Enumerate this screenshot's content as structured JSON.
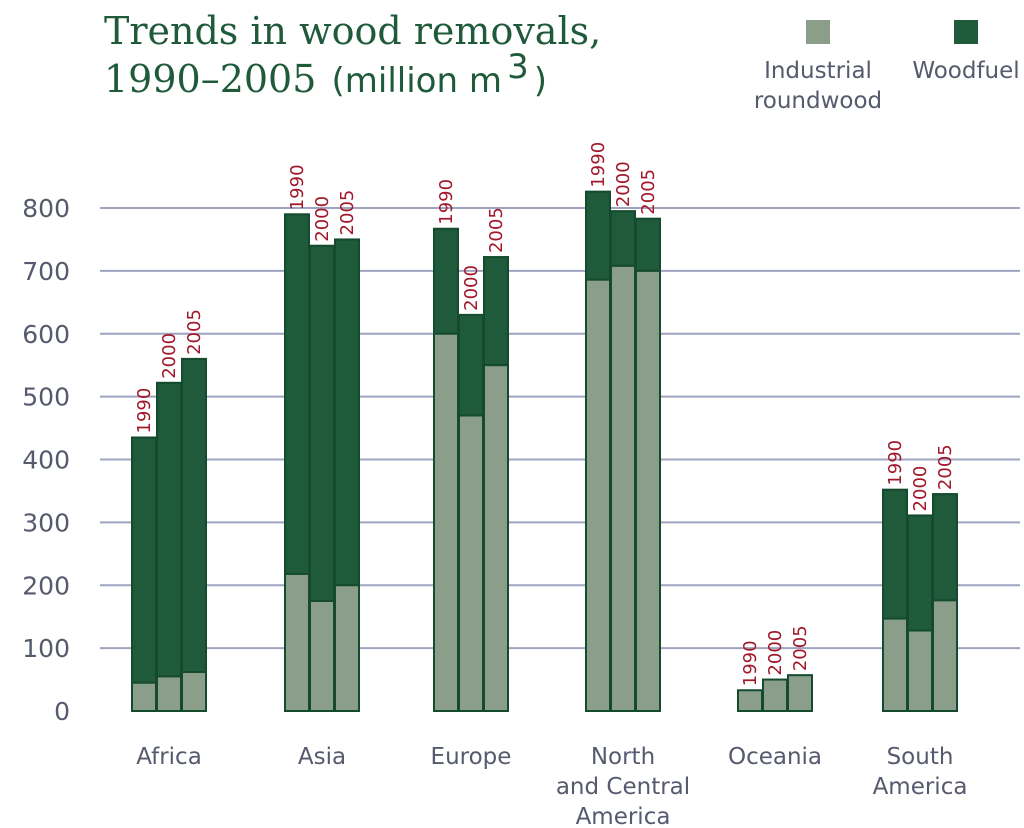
{
  "colors": {
    "industrial": "#8a9e8a",
    "woodfuel": "#1f5a3a",
    "outline": "#144a2e",
    "grid": "#9ea3bf",
    "year_label": "#a0182a",
    "title": "#1f5a3a",
    "axis_text": "#555a6e"
  },
  "chart_data": {
    "type": "bar",
    "stacked": true,
    "title_line1": "Trends in wood removals,",
    "title_line2_main": "1990–2005",
    "title_line2_unit": "(million m",
    "title_sup": "3",
    "title_close": ")",
    "ylim": [
      0,
      800
    ],
    "yticks": [
      0,
      100,
      200,
      300,
      400,
      500,
      600,
      700,
      800
    ],
    "grid": true,
    "legend_position": "top-right",
    "legend": [
      {
        "key": "industrial",
        "lines": [
          "Industrial",
          "roundwood"
        ]
      },
      {
        "key": "woodfuel",
        "lines": [
          "Woodfuel"
        ]
      }
    ],
    "years": [
      "1990",
      "2000",
      "2005"
    ],
    "categories": [
      {
        "label_lines": [
          "Africa"
        ],
        "industrial": [
          45,
          55,
          62
        ],
        "total": [
          435,
          522,
          560
        ]
      },
      {
        "label_lines": [
          "Asia"
        ],
        "industrial": [
          218,
          175,
          200
        ],
        "total": [
          790,
          740,
          750
        ]
      },
      {
        "label_lines": [
          "Europe"
        ],
        "industrial": [
          600,
          470,
          550
        ],
        "total": [
          767,
          630,
          722
        ]
      },
      {
        "label_lines": [
          "North",
          "and Central",
          "America"
        ],
        "industrial": [
          686,
          708,
          700
        ],
        "total": [
          826,
          795,
          783
        ]
      },
      {
        "label_lines": [
          "Oceania"
        ],
        "industrial": [
          33,
          50,
          57
        ],
        "total": [
          33,
          50,
          57
        ]
      },
      {
        "label_lines": [
          "South",
          "America"
        ],
        "industrial": [
          147,
          128,
          176
        ],
        "total": [
          352,
          311,
          345
        ]
      }
    ]
  }
}
